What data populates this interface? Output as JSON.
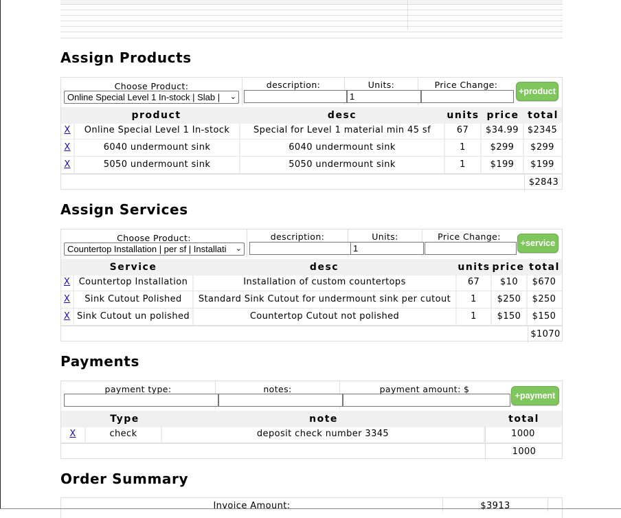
{
  "products": {
    "heading": "Assign Products",
    "form": {
      "choose_label": "Choose Product:",
      "choose_value": "Online Special Level 1 In-stock | Slab |",
      "description_label": "description:",
      "description_value": "",
      "units_label": "Units:",
      "units_value": "1",
      "price_change_label": "Price Change:",
      "price_change_value": "",
      "add_label": "+product"
    },
    "columns": [
      "product",
      "desc",
      "units",
      "price",
      "total"
    ],
    "rows": [
      {
        "remove": "X",
        "product": "Online Special Level 1 In-stock",
        "desc": "Special for Level 1 material min 45 sf",
        "units": "67",
        "price": "$34.99",
        "total": "$2345"
      },
      {
        "remove": "X",
        "product": "6040 undermount sink",
        "desc": "6040 undermount sink",
        "units": "1",
        "price": "$299",
        "total": "$299"
      },
      {
        "remove": "X",
        "product": "5050 undermount sink",
        "desc": "5050 undermount sink",
        "units": "1",
        "price": "$199",
        "total": "$199"
      }
    ],
    "grand_total": "$2843"
  },
  "services": {
    "heading": "Assign Services",
    "form": {
      "choose_label": "Choose Product:",
      "choose_value": "Countertop Installation | per sf | Installati",
      "description_label": "description:",
      "description_value": "",
      "units_label": "Units:",
      "units_value": "1",
      "price_change_label": "Price Change:",
      "price_change_value": "",
      "add_label": "+service"
    },
    "columns": [
      "Service",
      "desc",
      "units",
      "price",
      "total"
    ],
    "rows": [
      {
        "remove": "X",
        "service": "Countertop Installation",
        "desc": "Installation of custom countertops",
        "units": "67",
        "price": "$10",
        "total": "$670"
      },
      {
        "remove": "X",
        "service": "Sink Cutout Polished",
        "desc": "Standard Sink Cutout for undermount sink per cutout",
        "units": "1",
        "price": "$250",
        "total": "$250"
      },
      {
        "remove": "X",
        "service": "Sink Cutout un polished",
        "desc": "Countertop Cutout not polished",
        "units": "1",
        "price": "$150",
        "total": "$150"
      }
    ],
    "grand_total": "$1070"
  },
  "payments": {
    "heading": "Payments",
    "form": {
      "type_label": "payment type:",
      "type_value": "",
      "notes_label": "notes:",
      "notes_value": "",
      "amount_label": "payment amount: $",
      "amount_value": "",
      "add_label": "+payment"
    },
    "columns": [
      "Type",
      "note",
      "total"
    ],
    "rows": [
      {
        "remove": "X",
        "type": "check",
        "note": "deposit check number 3345",
        "total": "1000"
      }
    ],
    "grand_total": "1000"
  },
  "summary": {
    "heading": "Order Summary",
    "invoice_label": "Invoice Amount:",
    "invoice_value": "$3913"
  },
  "colors": {
    "add_button": "#7fc65c",
    "link": "#1a0dab",
    "header_bg": "#f0f0f0"
  }
}
